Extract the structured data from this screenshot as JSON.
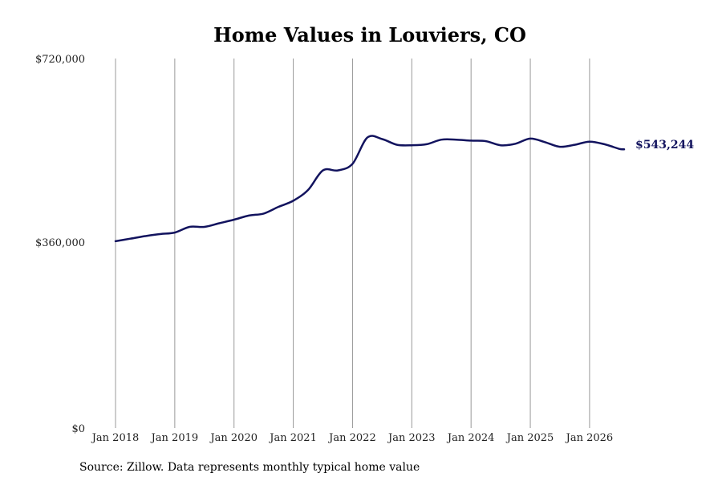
{
  "chart_data": {
    "type": "line",
    "title": "Home Values in Louviers, CO",
    "source": "Source: Zillow. Data represents monthly typical home value",
    "y_tick_labels": [
      "$720,000",
      "$360,000",
      "$0"
    ],
    "y_ticks": [
      720000,
      360000,
      0
    ],
    "ylim": [
      0,
      720000
    ],
    "x_tick_labels": [
      "Jan 2018",
      "Jan 2019",
      "Jan 2020",
      "Jan 2021",
      "Jan 2022",
      "Jan 2023",
      "Jan 2024",
      "Jan 2025",
      "Jan 2026"
    ],
    "x_ticks": [
      "2018-01",
      "2019-01",
      "2020-01",
      "2021-01",
      "2022-01",
      "2023-01",
      "2024-01",
      "2025-01",
      "2026-01"
    ],
    "xlim": [
      "2018-01",
      "2026-08"
    ],
    "grid": "vertical",
    "line_color": "#12135e",
    "end_label": "$543,244",
    "series": [
      {
        "x": [
          "2018-01",
          "2018-04",
          "2018-07",
          "2018-10",
          "2019-01",
          "2019-04",
          "2019-07",
          "2019-10",
          "2020-01",
          "2020-04",
          "2020-07",
          "2020-10",
          "2021-01",
          "2021-04",
          "2021-07",
          "2021-10",
          "2022-01",
          "2022-04",
          "2022-07",
          "2022-10",
          "2023-01",
          "2023-04",
          "2023-07",
          "2023-10",
          "2024-01",
          "2024-04",
          "2024-07",
          "2024-10",
          "2025-01",
          "2025-04",
          "2025-07",
          "2025-10",
          "2026-01",
          "2026-04",
          "2026-07",
          "2026-08"
        ],
        "values": [
          364000,
          369000,
          374000,
          378000,
          381000,
          392000,
          392000,
          399000,
          406000,
          414000,
          418000,
          431000,
          443000,
          464000,
          502000,
          502000,
          515000,
          566000,
          563000,
          552000,
          551000,
          553000,
          562000,
          562000,
          560000,
          559000,
          551000,
          554000,
          564000,
          557000,
          548000,
          552000,
          558000,
          553000,
          544000,
          543244
        ]
      }
    ]
  }
}
